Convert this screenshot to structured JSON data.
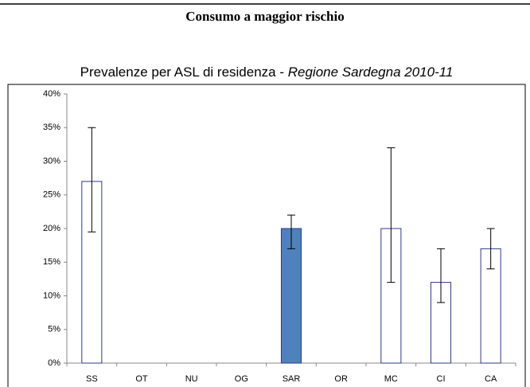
{
  "chart_data": {
    "type": "bar",
    "title": "Consumo a maggior rischio",
    "subtitle": "Prevalenze per ASL di residenza - ",
    "subtitle_italic": "Regione Sardegna 2010-11",
    "categories": [
      "SS",
      "OT",
      "NU",
      "OG",
      "SAR",
      "OR",
      "MC",
      "CI",
      "CA"
    ],
    "values": [
      27,
      null,
      null,
      null,
      20,
      null,
      20,
      12,
      17
    ],
    "ci_low": [
      19.5,
      null,
      null,
      null,
      17,
      null,
      12,
      9,
      14
    ],
    "ci_high": [
      35,
      null,
      null,
      null,
      22,
      null,
      32,
      17,
      20
    ],
    "colors": [
      "#ffffff",
      "#ffffff",
      "#ffffff",
      "#ffffff",
      "#4f81bd",
      "#ffffff",
      "#ffffff",
      "#ffffff",
      "#ffffff"
    ],
    "edge_color": "#2e3a87",
    "ylim": [
      0,
      40
    ],
    "yticks": [
      {
        "value": 0,
        "label": "0%"
      },
      {
        "value": 5,
        "label": "5%"
      },
      {
        "value": 10,
        "label": "10%"
      },
      {
        "value": 15,
        "label": "15%"
      },
      {
        "value": 20,
        "label": "20%"
      },
      {
        "value": 25,
        "label": "25%"
      },
      {
        "value": 30,
        "label": "30%"
      },
      {
        "value": 35,
        "label": "35%"
      },
      {
        "value": 40,
        "label": "40%"
      }
    ],
    "grid": false
  }
}
